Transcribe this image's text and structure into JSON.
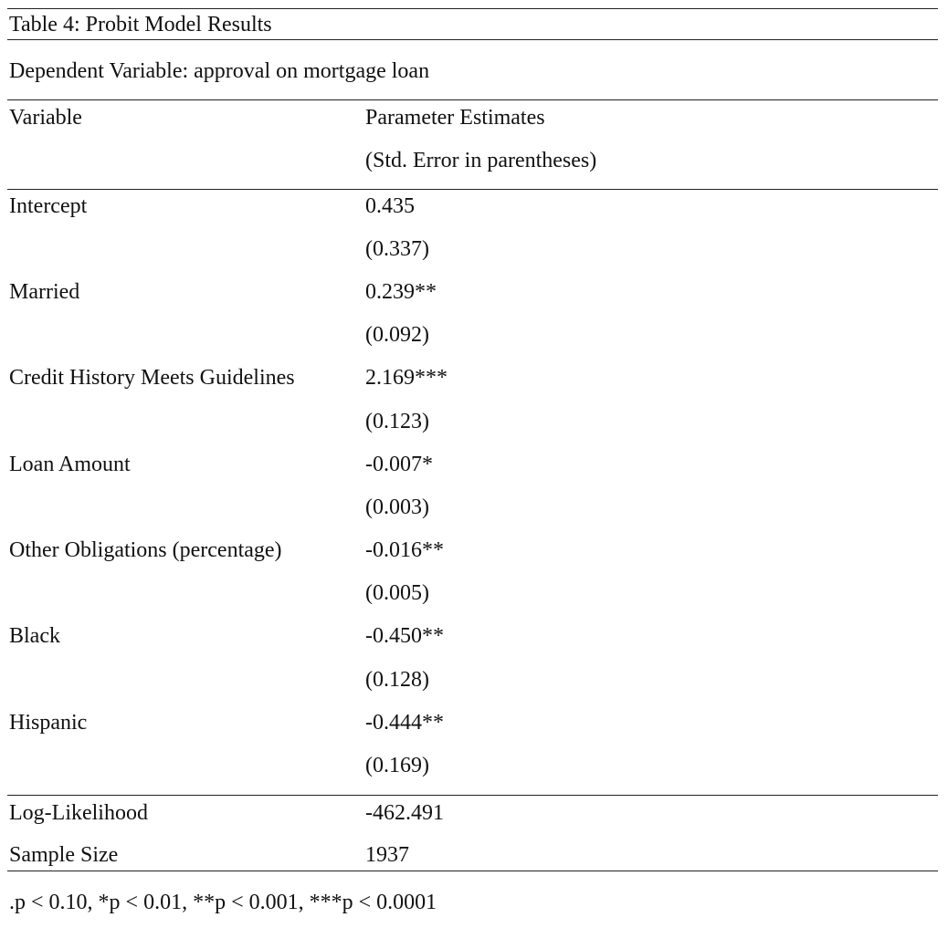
{
  "table": {
    "title": "Table 4: Probit Model Results",
    "dependent_variable": "Dependent Variable: approval on mortgage loan",
    "headers": {
      "variable": "Variable",
      "estimates": "Parameter Estimates",
      "estimates_note": "(Std. Error in parentheses)"
    },
    "rows": [
      {
        "variable": "Intercept",
        "estimate": "0.435",
        "std_error": "(0.337)"
      },
      {
        "variable": "Married",
        "estimate": "0.239**",
        "std_error": "(0.092)"
      },
      {
        "variable": "Credit History Meets Guidelines",
        "estimate": "2.169***",
        "std_error": "(0.123)"
      },
      {
        "variable": "Loan Amount",
        "estimate": "-0.007*",
        "std_error": "(0.003)"
      },
      {
        "variable": "Other Obligations (percentage)",
        "estimate": "-0.016**",
        "std_error": "(0.005)"
      },
      {
        "variable": "Black",
        "estimate": "-0.450**",
        "std_error": "(0.128)"
      },
      {
        "variable": "Hispanic",
        "estimate": "-0.444**",
        "std_error": "(0.169)"
      }
    ],
    "summary": [
      {
        "label": "Log-Likelihood",
        "value": "-462.491"
      },
      {
        "label": "Sample Size",
        "value": "1937"
      }
    ],
    "footnote": ".p < 0.10, *p < 0.01, **p < 0.001, ***p < 0.0001"
  }
}
